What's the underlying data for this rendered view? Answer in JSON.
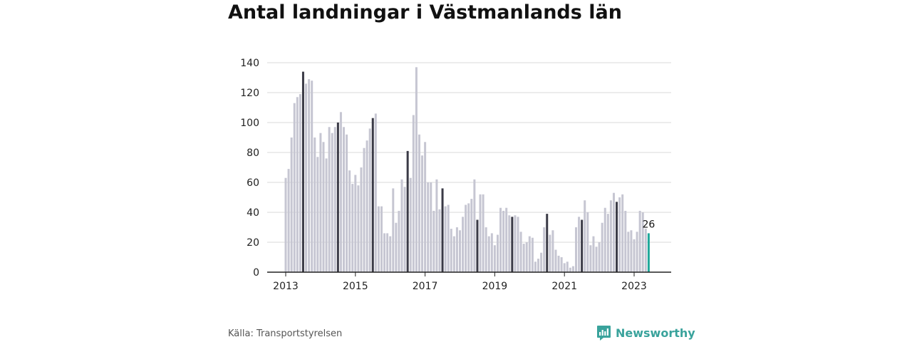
{
  "title": "Antal landningar i Västmanlands län",
  "source": "Källa: Transportstyrelsen",
  "brand": {
    "name": "Newsworthy",
    "icon": "newsworthy-chart-icon",
    "color": "#3aa39c"
  },
  "chart_data": {
    "type": "bar",
    "title": "Antal landningar i Västmanlands län",
    "xlabel": "",
    "ylabel": "",
    "ylim": [
      0,
      140
    ],
    "y_ticks": [
      0,
      20,
      40,
      60,
      80,
      100,
      120,
      140
    ],
    "x_ticks": [
      "2013",
      "2015",
      "2017",
      "2019",
      "2021",
      "2023"
    ],
    "grid": true,
    "start": "2013-01",
    "frequency": "monthly",
    "highlight_month": "July",
    "colors": {
      "default": "#c6c6d2",
      "highlight": "#3a3a46",
      "latest": "#1fa89a"
    },
    "latest_label": "26",
    "values": [
      63,
      69,
      90,
      113,
      117,
      119,
      134,
      126,
      129,
      128,
      90,
      77,
      93,
      87,
      76,
      97,
      93,
      97,
      100,
      107,
      97,
      92,
      68,
      59,
      65,
      58,
      70,
      83,
      88,
      96,
      103,
      106,
      44,
      44,
      26,
      26,
      24,
      56,
      33,
      41,
      62,
      57,
      81,
      63,
      105,
      137,
      92,
      78,
      87,
      60,
      60,
      41,
      62,
      42,
      56,
      44,
      45,
      29,
      24,
      30,
      28,
      37,
      45,
      46,
      49,
      62,
      35,
      52,
      52,
      30,
      24,
      26,
      18,
      25,
      43,
      41,
      43,
      38,
      37,
      38,
      37,
      27,
      19,
      20,
      24,
      23,
      7,
      9,
      13,
      30,
      39,
      25,
      28,
      15,
      11,
      10,
      6,
      7,
      3,
      4,
      30,
      37,
      35,
      48,
      40,
      18,
      24,
      17,
      20,
      33,
      43,
      39,
      48,
      53,
      47,
      50,
      52,
      41,
      27,
      28,
      22,
      27,
      41,
      40,
      29,
      26
    ]
  }
}
